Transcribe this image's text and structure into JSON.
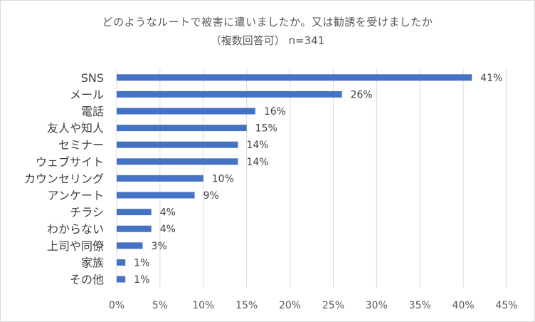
{
  "chart_data": {
    "type": "bar",
    "orientation": "horizontal",
    "title": "どのようなルートで被害に遭いましたか。又は勧誘を受けましたか",
    "subtitle": "（複数回答可） n=341",
    "categories": [
      "SNS",
      "メール",
      "電話",
      "友人や知人",
      "セミナー",
      "ウェブサイト",
      "カウンセリング",
      "アンケート",
      "チラシ",
      "わからない",
      "上司や同僚",
      "家族",
      "その他"
    ],
    "values": [
      41,
      26,
      16,
      15,
      14,
      14,
      10,
      9,
      4,
      4,
      3,
      1,
      1
    ],
    "value_labels": [
      "41%",
      "26%",
      "16%",
      "15%",
      "14%",
      "14%",
      "10%",
      "9%",
      "4%",
      "4%",
      "3%",
      "1%",
      "1%"
    ],
    "xlim": [
      0,
      45
    ],
    "xticks": [
      0,
      5,
      10,
      15,
      20,
      25,
      30,
      35,
      40,
      45
    ],
    "xtick_labels": [
      "0%",
      "5%",
      "10%",
      "15%",
      "20%",
      "25%",
      "30%",
      "35%",
      "40%",
      "45%"
    ],
    "grid": true,
    "bar_color": "#4472c4"
  }
}
